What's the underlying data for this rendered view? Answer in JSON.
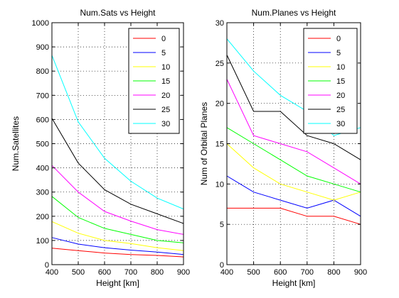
{
  "chart_data": [
    {
      "type": "line",
      "title": "Num.Sats vs Height",
      "xlabel": "Height [km]",
      "ylabel": "Num.Satellites",
      "xlim": [
        400,
        900
      ],
      "ylim": [
        0,
        1000
      ],
      "xticks": [
        400,
        500,
        600,
        700,
        800,
        900
      ],
      "yticks": [
        0,
        100,
        200,
        300,
        400,
        500,
        600,
        700,
        800,
        900,
        1000
      ],
      "grid": true,
      "legend_position": "top-right",
      "x": [
        400,
        500,
        600,
        700,
        800,
        900
      ],
      "series": [
        {
          "name": "0",
          "color": "#ff0000",
          "values": [
            68,
            58,
            48,
            42,
            38,
            32
          ]
        },
        {
          "name": "5",
          "color": "#0000ff",
          "values": [
            112,
            85,
            70,
            60,
            52,
            42
          ]
        },
        {
          "name": "10",
          "color": "#ffff00",
          "values": [
            178,
            130,
            100,
            87,
            70,
            58
          ]
        },
        {
          "name": "15",
          "color": "#00ff00",
          "values": [
            282,
            195,
            150,
            125,
            100,
            90
          ]
        },
        {
          "name": "20",
          "color": "#ff00ff",
          "values": [
            410,
            300,
            220,
            180,
            145,
            125
          ]
        },
        {
          "name": "25",
          "color": "#000000",
          "values": [
            605,
            420,
            310,
            250,
            210,
            170
          ]
        },
        {
          "name": "30",
          "color": "#00ffff",
          "values": [
            865,
            590,
            440,
            345,
            275,
            230
          ]
        }
      ]
    },
    {
      "type": "line",
      "title": "Num.Planes vs Height",
      "xlabel": "Height [km]",
      "ylabel": "Num of Orbital Planes",
      "xlim": [
        400,
        900
      ],
      "ylim": [
        0,
        30
      ],
      "xticks": [
        400,
        500,
        600,
        700,
        800,
        900
      ],
      "yticks": [
        0,
        5,
        10,
        15,
        20,
        25,
        30
      ],
      "grid": true,
      "legend_position": "top-right",
      "x": [
        400,
        500,
        600,
        700,
        800,
        900
      ],
      "series": [
        {
          "name": "0",
          "color": "#ff0000",
          "values": [
            7,
            7,
            7,
            6,
            6,
            5
          ]
        },
        {
          "name": "5",
          "color": "#0000ff",
          "values": [
            11,
            9,
            8,
            7,
            8,
            6
          ]
        },
        {
          "name": "10",
          "color": "#ffff00",
          "values": [
            15,
            12,
            10,
            9,
            8,
            9
          ]
        },
        {
          "name": "15",
          "color": "#00ff00",
          "values": [
            17,
            15,
            13,
            11,
            10,
            9
          ]
        },
        {
          "name": "20",
          "color": "#ff00ff",
          "values": [
            23,
            16,
            15,
            14,
            12,
            10
          ]
        },
        {
          "name": "25",
          "color": "#000000",
          "values": [
            26,
            19,
            19,
            16,
            15,
            13
          ]
        },
        {
          "name": "30",
          "color": "#00ffff",
          "values": [
            28,
            24,
            21,
            19,
            16,
            17
          ]
        }
      ]
    }
  ]
}
